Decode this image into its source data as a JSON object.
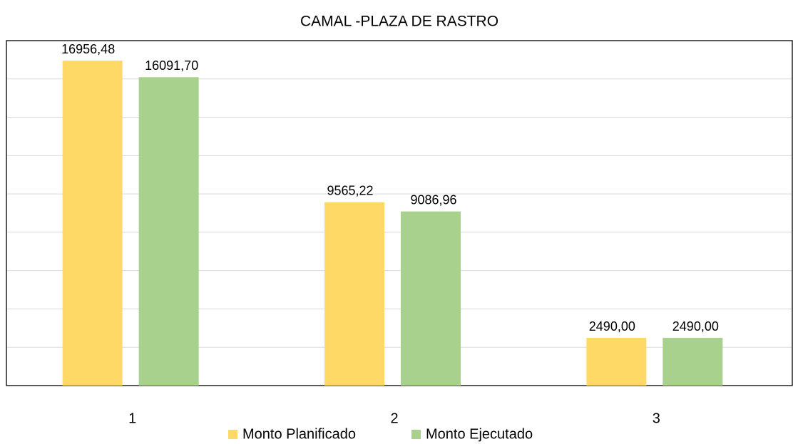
{
  "chart_data": {
    "type": "bar",
    "title": "CAMAL -PLAZA DE RASTRO",
    "categories": [
      "1",
      "2",
      "3"
    ],
    "series": [
      {
        "name": "Monto Planificado",
        "color": "#FFD966",
        "values": [
          16956.48,
          9565.22,
          2490.0
        ],
        "value_labels": [
          "16956,48",
          "9565,22",
          "2490,00"
        ]
      },
      {
        "name": "Monto Ejecutado",
        "color": "#A9D18E",
        "values": [
          16091.7,
          9086.96,
          2490.0
        ],
        "value_labels": [
          "16091,70",
          "9086,96",
          "2490,00"
        ]
      }
    ],
    "ylim": [
      0,
      18000
    ],
    "yticks": [
      0,
      2000,
      4000,
      6000,
      8000,
      10000,
      12000,
      14000,
      16000,
      18000
    ],
    "grid": true,
    "legend": "bottom"
  }
}
